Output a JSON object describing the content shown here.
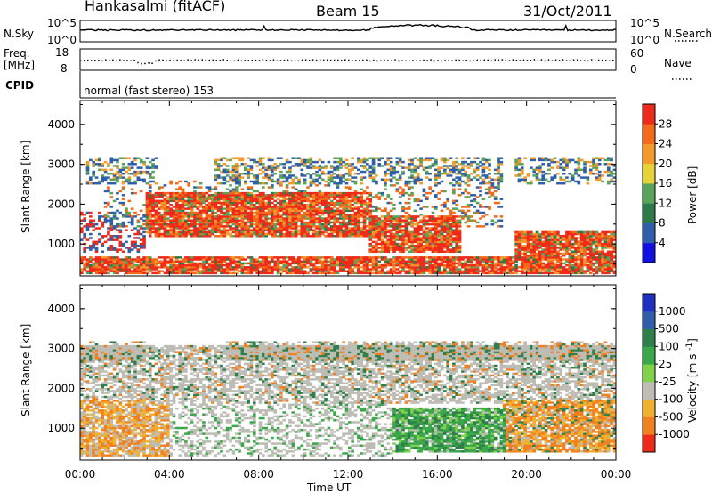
{
  "header": {
    "station": "Hankasalmi (fitACF)",
    "beam": "Beam 15",
    "date": "31/Oct/2011"
  },
  "strip": {
    "nsky_label": "N.Sky",
    "nsky_ticks": [
      "10^5",
      "10^0"
    ],
    "nsearch_label": "N.Search",
    "nsearch_ticks": [
      "10^5",
      "10^0"
    ],
    "freq_label_1": "Freq.",
    "freq_label_2": "[MHz]",
    "freq_ticks": [
      "18",
      "8"
    ],
    "nave_label": "Nave",
    "nave_ticks": [
      "60",
      "0"
    ],
    "cpid_label": "CPID",
    "cpid_text": "normal (fast stereo) 153"
  },
  "chart_data": [
    {
      "type": "heatmap",
      "panel": "power",
      "ylabel": "Slant Range [km]",
      "yticks": [
        "1000",
        "2000",
        "3000",
        "4000"
      ],
      "ylim": [
        200,
        4600
      ],
      "xlim": [
        "00:00",
        "24:00"
      ],
      "colorbar_label": "Power [dB]",
      "colorbar_ticks": [
        "4",
        "8",
        "12",
        "16",
        "20",
        "24",
        "28"
      ],
      "colorscale": [
        "#1010e0",
        "#2f5fa8",
        "#2c7a4a",
        "#5aa35a",
        "#e6d23a",
        "#f39a2a",
        "#f26a1a",
        "#ee2a1a"
      ],
      "dominant_features": [
        {
          "time_start": "00:00",
          "time_end": "24:00",
          "range_km": [
            250,
            700
          ],
          "note": "persistent near-range echoes"
        },
        {
          "time_start": "03:00",
          "time_end": "13:00",
          "range_km": [
            1200,
            2300
          ],
          "note": "strong red/orange band"
        },
        {
          "time_start": "13:00",
          "time_end": "17:00",
          "range_km": [
            800,
            1700
          ],
          "note": "strong red/orange band"
        },
        {
          "time_start": "19:30",
          "time_end": "24:00",
          "range_km": [
            650,
            1300
          ],
          "note": "strong red echoes"
        }
      ]
    },
    {
      "type": "heatmap",
      "panel": "velocity",
      "ylabel": "Slant Range [km]",
      "yticks": [
        "1000",
        "2000",
        "3000",
        "4000"
      ],
      "ylim": [
        200,
        4600
      ],
      "xlim": [
        "00:00",
        "24:00"
      ],
      "xticks": [
        "00:00",
        "04:00",
        "08:00",
        "12:00",
        "16:00",
        "20:00",
        "00:00"
      ],
      "xlabel": "Time UT",
      "colorbar_label": "Velocity [m s^-1]",
      "colorbar_ticks": [
        "1000",
        "500",
        "100",
        "25",
        "-25",
        "-100",
        "-500",
        "-1000"
      ],
      "colorscale": [
        "#2030c0",
        "#2f5fa8",
        "#2f7f4a",
        "#3aa84a",
        "#7fd24a",
        "#bdbdb5",
        "#f0b030",
        "#f08020",
        "#ee2a1a"
      ],
      "dominant_features": [
        {
          "time_start": "00:00",
          "time_end": "24:00",
          "range_km": [
            1600,
            3100
          ],
          "note": "mostly grey (near zero) echoes"
        },
        {
          "time_start": "00:00",
          "time_end": "04:00",
          "range_km": [
            300,
            1700
          ],
          "note": "orange/yellow (receding) echoes"
        },
        {
          "time_start": "14:00",
          "time_end": "19:00",
          "range_km": [
            400,
            1500
          ],
          "note": "green (approaching) echoes"
        },
        {
          "time_start": "19:00",
          "time_end": "24:00",
          "range_km": [
            400,
            1700
          ],
          "note": "orange (receding) echoes"
        }
      ]
    }
  ]
}
